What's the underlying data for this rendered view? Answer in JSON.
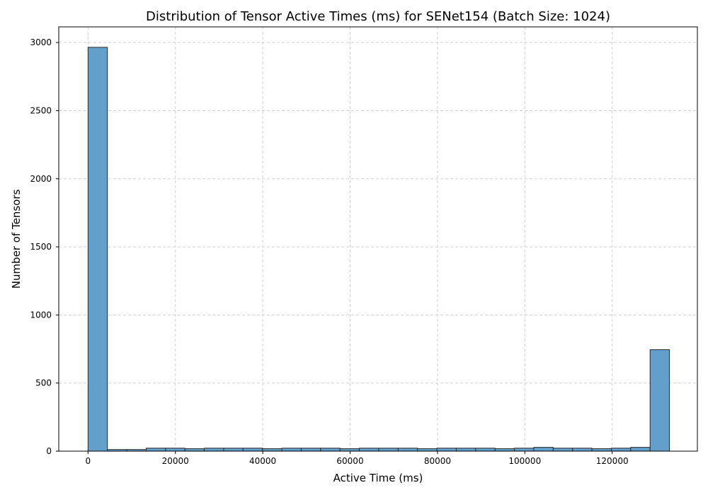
{
  "chart_data": {
    "type": "bar",
    "title": "Distribution of Tensor Active Times (ms) for SENet154 (Batch Size: 1024)",
    "xlabel": "Active Time (ms)",
    "ylabel": "Number of Tensors",
    "xlim": [
      -6700,
      139500
    ],
    "ylim": [
      0,
      3115
    ],
    "xticks": [
      0,
      20000,
      40000,
      60000,
      80000,
      100000,
      120000
    ],
    "yticks": [
      0,
      500,
      1000,
      1500,
      2000,
      2500,
      3000
    ],
    "grid": true,
    "bin_edges": [
      0,
      4437,
      8874,
      13311,
      17748,
      22185,
      26622,
      31059,
      35496,
      39933,
      44370,
      48807,
      53244,
      57681,
      62118,
      66555,
      70992,
      75429,
      79866,
      84303,
      88740,
      93177,
      97614,
      102051,
      106488,
      110925,
      115362,
      119799,
      124236,
      128673,
      133110
    ],
    "values": [
      2965,
      12,
      12,
      22,
      22,
      18,
      22,
      22,
      22,
      18,
      22,
      22,
      22,
      18,
      22,
      22,
      22,
      18,
      22,
      22,
      22,
      18,
      22,
      28,
      22,
      22,
      18,
      22,
      28,
      745
    ],
    "colors": {
      "bar": "#629fca",
      "edge": "#2b2b2b"
    }
  }
}
